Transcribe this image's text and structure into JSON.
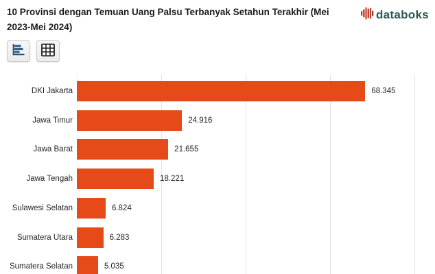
{
  "header": {
    "title": "10 Provinsi dengan Temuan Uang Palsu Terbanyak Setahun Terakhir (Mei 2023-Mei 2024)",
    "brand": "databoks"
  },
  "toolbar": {
    "chart_view": "chart view",
    "table_view": "table view"
  },
  "chart_data": {
    "type": "bar",
    "orientation": "horizontal",
    "title": "10 Provinsi dengan Temuan Uang Palsu Terbanyak Setahun Terakhir (Mei 2023-Mei 2024)",
    "categories": [
      "DKI Jakarta",
      "Jawa Timur",
      "Jawa Barat",
      "Jawa Tengah",
      "Sulawesi Selatan",
      "Sumatera Utara",
      "Sumatera Selatan"
    ],
    "values": [
      68345,
      24916,
      21655,
      18221,
      6824,
      6283,
      5035
    ],
    "value_labels": [
      "68.345",
      "24.916",
      "21.655",
      "18.221",
      "6.824",
      "6.283",
      "5.035"
    ],
    "xlim": [
      0,
      85000
    ],
    "gridline_interval": 20000,
    "grid": true,
    "legend": "none",
    "bar_color": "#E64A19"
  },
  "colors": {
    "bar": "#E64A19",
    "brand_text": "#2E5A56",
    "brand_icon_red": "#C33E2B",
    "grid": "#E3E3E3",
    "label_text": "#252423",
    "title_text": "#1A1A1A"
  }
}
